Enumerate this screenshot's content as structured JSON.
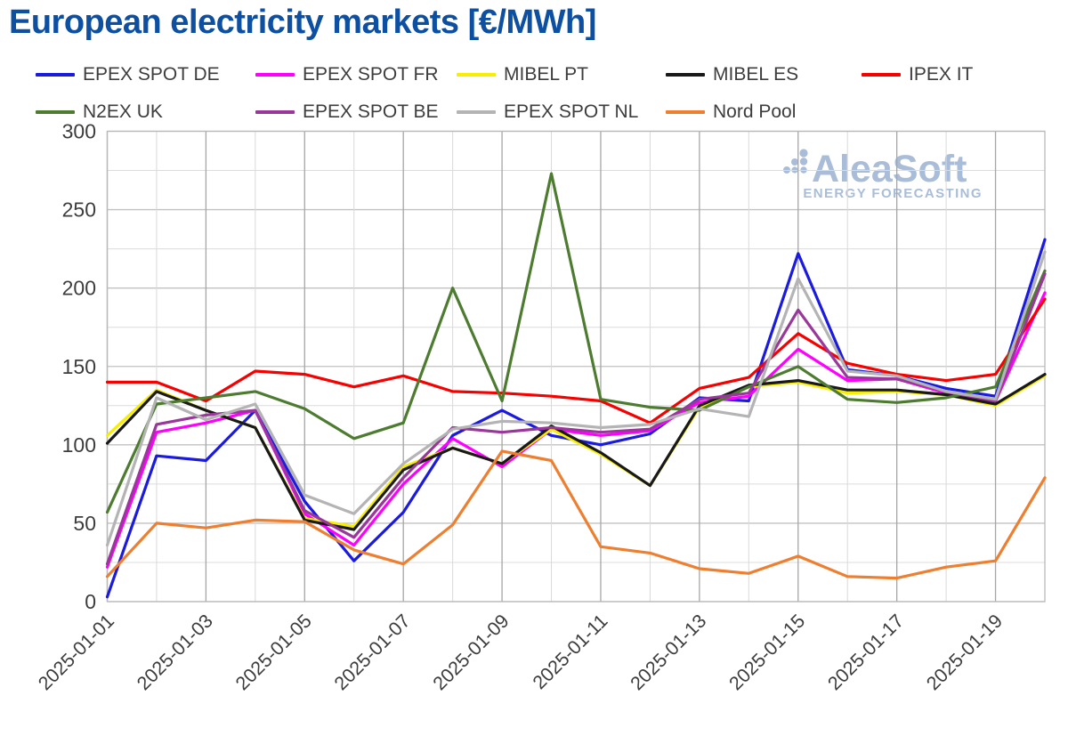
{
  "title": "European electricity markets [€/MWh]",
  "title_color": "#0d4fa0",
  "watermark": {
    "name": "AleaSoft",
    "tagline": "ENERGY FORECASTING",
    "color": "#a9bdd8"
  },
  "chart_data": {
    "type": "line",
    "title": "European electricity markets [€/MWh]",
    "xlabel": "",
    "ylabel": "",
    "ylim": [
      0,
      300
    ],
    "y_ticks": [
      0,
      50,
      100,
      150,
      200,
      250,
      300
    ],
    "y_minor_step": 25,
    "grid": "on, minor and major, light gray; darker vertical line on labeled days",
    "legend_position": "top, two rows",
    "x": [
      "2025-01-01",
      "2025-01-02",
      "2025-01-03",
      "2025-01-04",
      "2025-01-05",
      "2025-01-06",
      "2025-01-07",
      "2025-01-08",
      "2025-01-09",
      "2025-01-10",
      "2025-01-11",
      "2025-01-12",
      "2025-01-13",
      "2025-01-14",
      "2025-01-15",
      "2025-01-16",
      "2025-01-17",
      "2025-01-18",
      "2025-01-19",
      "2025-01-20"
    ],
    "x_tick_labels_shown": [
      "2025-01-01",
      "2025-01-03",
      "2025-01-05",
      "2025-01-07",
      "2025-01-09",
      "2025-01-11",
      "2025-01-13",
      "2025-01-15",
      "2025-01-17",
      "2025-01-19"
    ],
    "series": [
      {
        "name": "EPEX SPOT DE",
        "color": "#1a1ae0",
        "values": [
          3,
          93,
          90,
          122,
          64,
          26,
          57,
          106,
          122,
          106,
          100,
          107,
          130,
          128,
          222,
          148,
          144,
          136,
          131,
          231
        ]
      },
      {
        "name": "EPEX SPOT FR",
        "color": "#ff00ff",
        "values": [
          22,
          108,
          114,
          122,
          56,
          36,
          75,
          104,
          86,
          110,
          106,
          109,
          127,
          131,
          161,
          141,
          142,
          133,
          128,
          197
        ]
      },
      {
        "name": "MIBEL PT",
        "color": "#f7ee00",
        "values": [
          106,
          135,
          122,
          111,
          53,
          48,
          86,
          98,
          88,
          110,
          94,
          74,
          124,
          137,
          140,
          133,
          134,
          132,
          125,
          144
        ]
      },
      {
        "name": "MIBEL ES",
        "color": "#191919",
        "values": [
          101,
          134,
          122,
          111,
          52,
          46,
          84,
          98,
          88,
          112,
          95,
          74,
          125,
          138,
          141,
          135,
          135,
          132,
          126,
          145
        ]
      },
      {
        "name": "IPEX IT",
        "color": "#f70000",
        "values": [
          140,
          140,
          128,
          147,
          145,
          137,
          144,
          134,
          133,
          131,
          128,
          114,
          136,
          143,
          171,
          152,
          145,
          141,
          145,
          193
        ]
      },
      {
        "name": "N2EX UK",
        "color": "#4d7c30",
        "values": [
          57,
          126,
          130,
          134,
          123,
          104,
          114,
          200,
          128,
          273,
          129,
          124,
          122,
          137,
          150,
          129,
          127,
          130,
          137,
          211
        ]
      },
      {
        "name": "EPEX SPOT BE",
        "color": "#99379b",
        "values": [
          24,
          113,
          119,
          122,
          58,
          41,
          79,
          111,
          108,
          111,
          108,
          110,
          129,
          133,
          186,
          143,
          142,
          134,
          128,
          209
        ]
      },
      {
        "name": "EPEX SPOT NL",
        "color": "#b4b4b4",
        "values": [
          36,
          130,
          116,
          126,
          68,
          56,
          88,
          110,
          115,
          114,
          111,
          113,
          123,
          118,
          206,
          147,
          144,
          134,
          129,
          223
        ]
      },
      {
        "name": "Nord Pool",
        "color": "#ee7f30",
        "values": [
          16,
          50,
          47,
          52,
          51,
          33,
          24,
          49,
          96,
          90,
          35,
          31,
          21,
          18,
          29,
          16,
          15,
          22,
          26,
          79
        ]
      }
    ]
  }
}
